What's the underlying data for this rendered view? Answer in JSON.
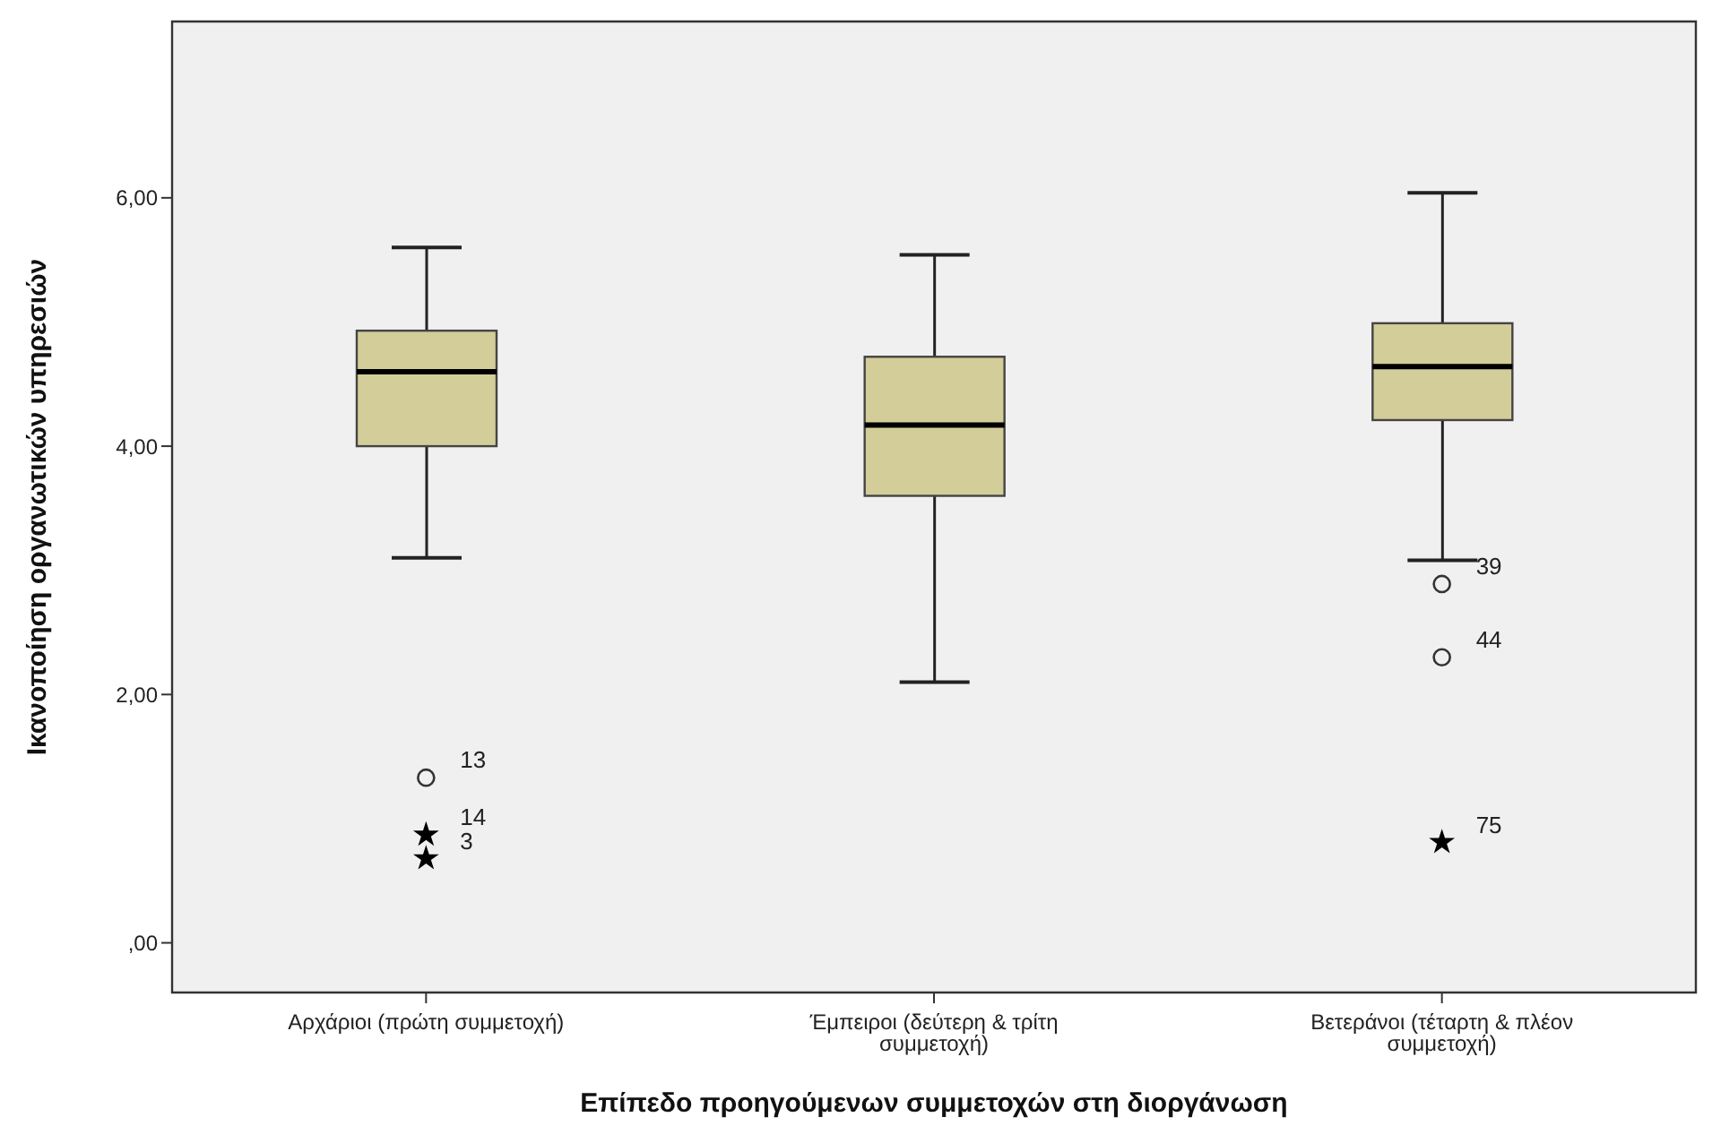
{
  "chart_data": {
    "type": "box",
    "xlabel": "Επίπεδο προηγούμενων συμμετοχών στη διοργάνωση",
    "ylabel": "Ικανοποίηση οργανωτικών υπηρεσιών",
    "categories": [
      "Αρχάριοι (πρώτη συμμετοχή)",
      "Έμπειροι (δεύτερη & τρίτη συμμετοχή)",
      "Βετεράνοι (τέταρτη & πλέον συμμετοχή)"
    ],
    "series": [
      {
        "type": "box",
        "color": "#d3ce99",
        "boxes": [
          {
            "low": 3.1,
            "q1": 4.0,
            "median": 4.6,
            "q3": 4.93,
            "high": 5.6
          },
          {
            "low": 2.1,
            "q1": 3.6,
            "median": 4.17,
            "q3": 4.72,
            "high": 5.54
          },
          {
            "low": 3.08,
            "q1": 4.21,
            "median": 4.64,
            "q3": 4.99,
            "high": 6.04
          }
        ]
      },
      {
        "type": "scatter",
        "marker": "circle",
        "color": "#333333",
        "x": [
          "Αρχάριοι (πρώτη συμμετοχή)",
          "Βετεράνοι (τέταρτη & πλέον συμμετοχή)",
          "Βετεράνοι (τέταρτη & πλέον συμμετοχή)"
        ],
        "values": [
          1.33,
          2.89,
          2.3
        ]
      },
      {
        "type": "scatter",
        "marker": "star",
        "color": "#000000",
        "x": [
          "Αρχάριοι (πρώτη συμμετοχή)",
          "Αρχάριοι (πρώτη συμμετοχή)",
          "Βετεράνοι (τέταρτη & πλέον συμμετοχή)"
        ],
        "values": [
          0.87,
          0.68,
          0.81
        ]
      }
    ],
    "ylim": [
      -0.4,
      7.42
    ],
    "yticks": [
      {
        "value": 0,
        "label": ",00"
      },
      {
        "value": 2,
        "label": "2,00"
      },
      {
        "value": 4,
        "label": "4,00"
      },
      {
        "value": 6,
        "label": "6,00"
      }
    ],
    "legend": false,
    "annotations": [
      {
        "text": "13",
        "x": "Αρχάριοι (πρώτη συμμετοχή)",
        "y": 1.33
      },
      {
        "text": "14",
        "x": "Αρχάριοι (πρώτη συμμετοχή)",
        "y": 0.87
      },
      {
        "text": "3",
        "x": "Αρχάριοι (πρώτη συμμετοχή)",
        "y": 0.68
      },
      {
        "text": "39",
        "x": "Βετεράνοι (τέταρτη & πλέον συμμετοχή)",
        "y": 2.89
      },
      {
        "text": "44",
        "x": "Βετεράνοι (τέταρτη & πλέον συμμετοχή)",
        "y": 2.3
      },
      {
        "text": "75",
        "x": "Βετεράνοι (τέταρτη & πλέον συμμετοχή)",
        "y": 0.81
      }
    ]
  }
}
